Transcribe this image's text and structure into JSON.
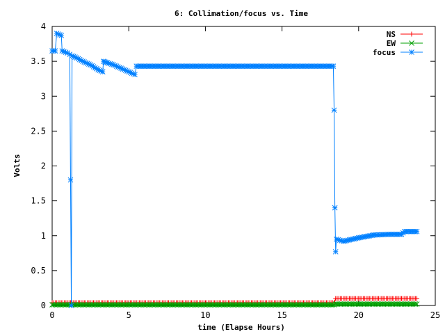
{
  "chart_data": {
    "type": "line",
    "title": "6: Collimation/focus vs. Time",
    "xlabel": "time (Elapse Hours)",
    "ylabel": "Volts",
    "xlim": [
      0,
      25
    ],
    "ylim": [
      0,
      4
    ],
    "x_ticks": [
      "0",
      "5",
      "10",
      "15",
      "20",
      "25"
    ],
    "y_ticks": [
      "0",
      "0.5",
      "1",
      "1.5",
      "2",
      "2.5",
      "3",
      "3.5",
      "4"
    ],
    "legend_position": "top-right",
    "grid": false,
    "series": [
      {
        "name": "NS",
        "color": "#ff0000",
        "marker": "plus",
        "points": [
          [
            0,
            0.04
          ],
          [
            18.4,
            0.04
          ],
          [
            18.5,
            0.1
          ],
          [
            23.8,
            0.1
          ]
        ]
      },
      {
        "name": "EW",
        "color": "#00a000",
        "marker": "cross",
        "points": [
          [
            0,
            0.01
          ],
          [
            18.4,
            0.01
          ],
          [
            18.5,
            0.02
          ],
          [
            23.8,
            0.02
          ]
        ]
      },
      {
        "name": "focus",
        "color": "#0080ff",
        "marker": "star",
        "points": [
          [
            0,
            3.65
          ],
          [
            0.2,
            3.65
          ],
          [
            0.3,
            3.9
          ],
          [
            0.6,
            3.87
          ],
          [
            0.65,
            3.65
          ],
          [
            1.0,
            3.62
          ],
          [
            1.15,
            3.6
          ],
          [
            1.2,
            1.8
          ],
          [
            1.25,
            0.0
          ],
          [
            1.3,
            3.58
          ],
          [
            1.6,
            3.55
          ],
          [
            2.0,
            3.5
          ],
          [
            2.5,
            3.45
          ],
          [
            3.0,
            3.38
          ],
          [
            3.3,
            3.35
          ],
          [
            3.35,
            3.5
          ],
          [
            3.6,
            3.48
          ],
          [
            4.0,
            3.45
          ],
          [
            4.5,
            3.4
          ],
          [
            5.0,
            3.35
          ],
          [
            5.4,
            3.31
          ],
          [
            5.5,
            3.43
          ],
          [
            10,
            3.43
          ],
          [
            15,
            3.43
          ],
          [
            18.35,
            3.43
          ],
          [
            18.4,
            2.8
          ],
          [
            18.45,
            1.4
          ],
          [
            18.5,
            0.77
          ],
          [
            18.55,
            0.95
          ],
          [
            19.0,
            0.92
          ],
          [
            20.0,
            0.97
          ],
          [
            21.0,
            1.01
          ],
          [
            22.0,
            1.02
          ],
          [
            22.8,
            1.02
          ],
          [
            23.0,
            1.06
          ],
          [
            23.8,
            1.06
          ]
        ]
      }
    ]
  }
}
